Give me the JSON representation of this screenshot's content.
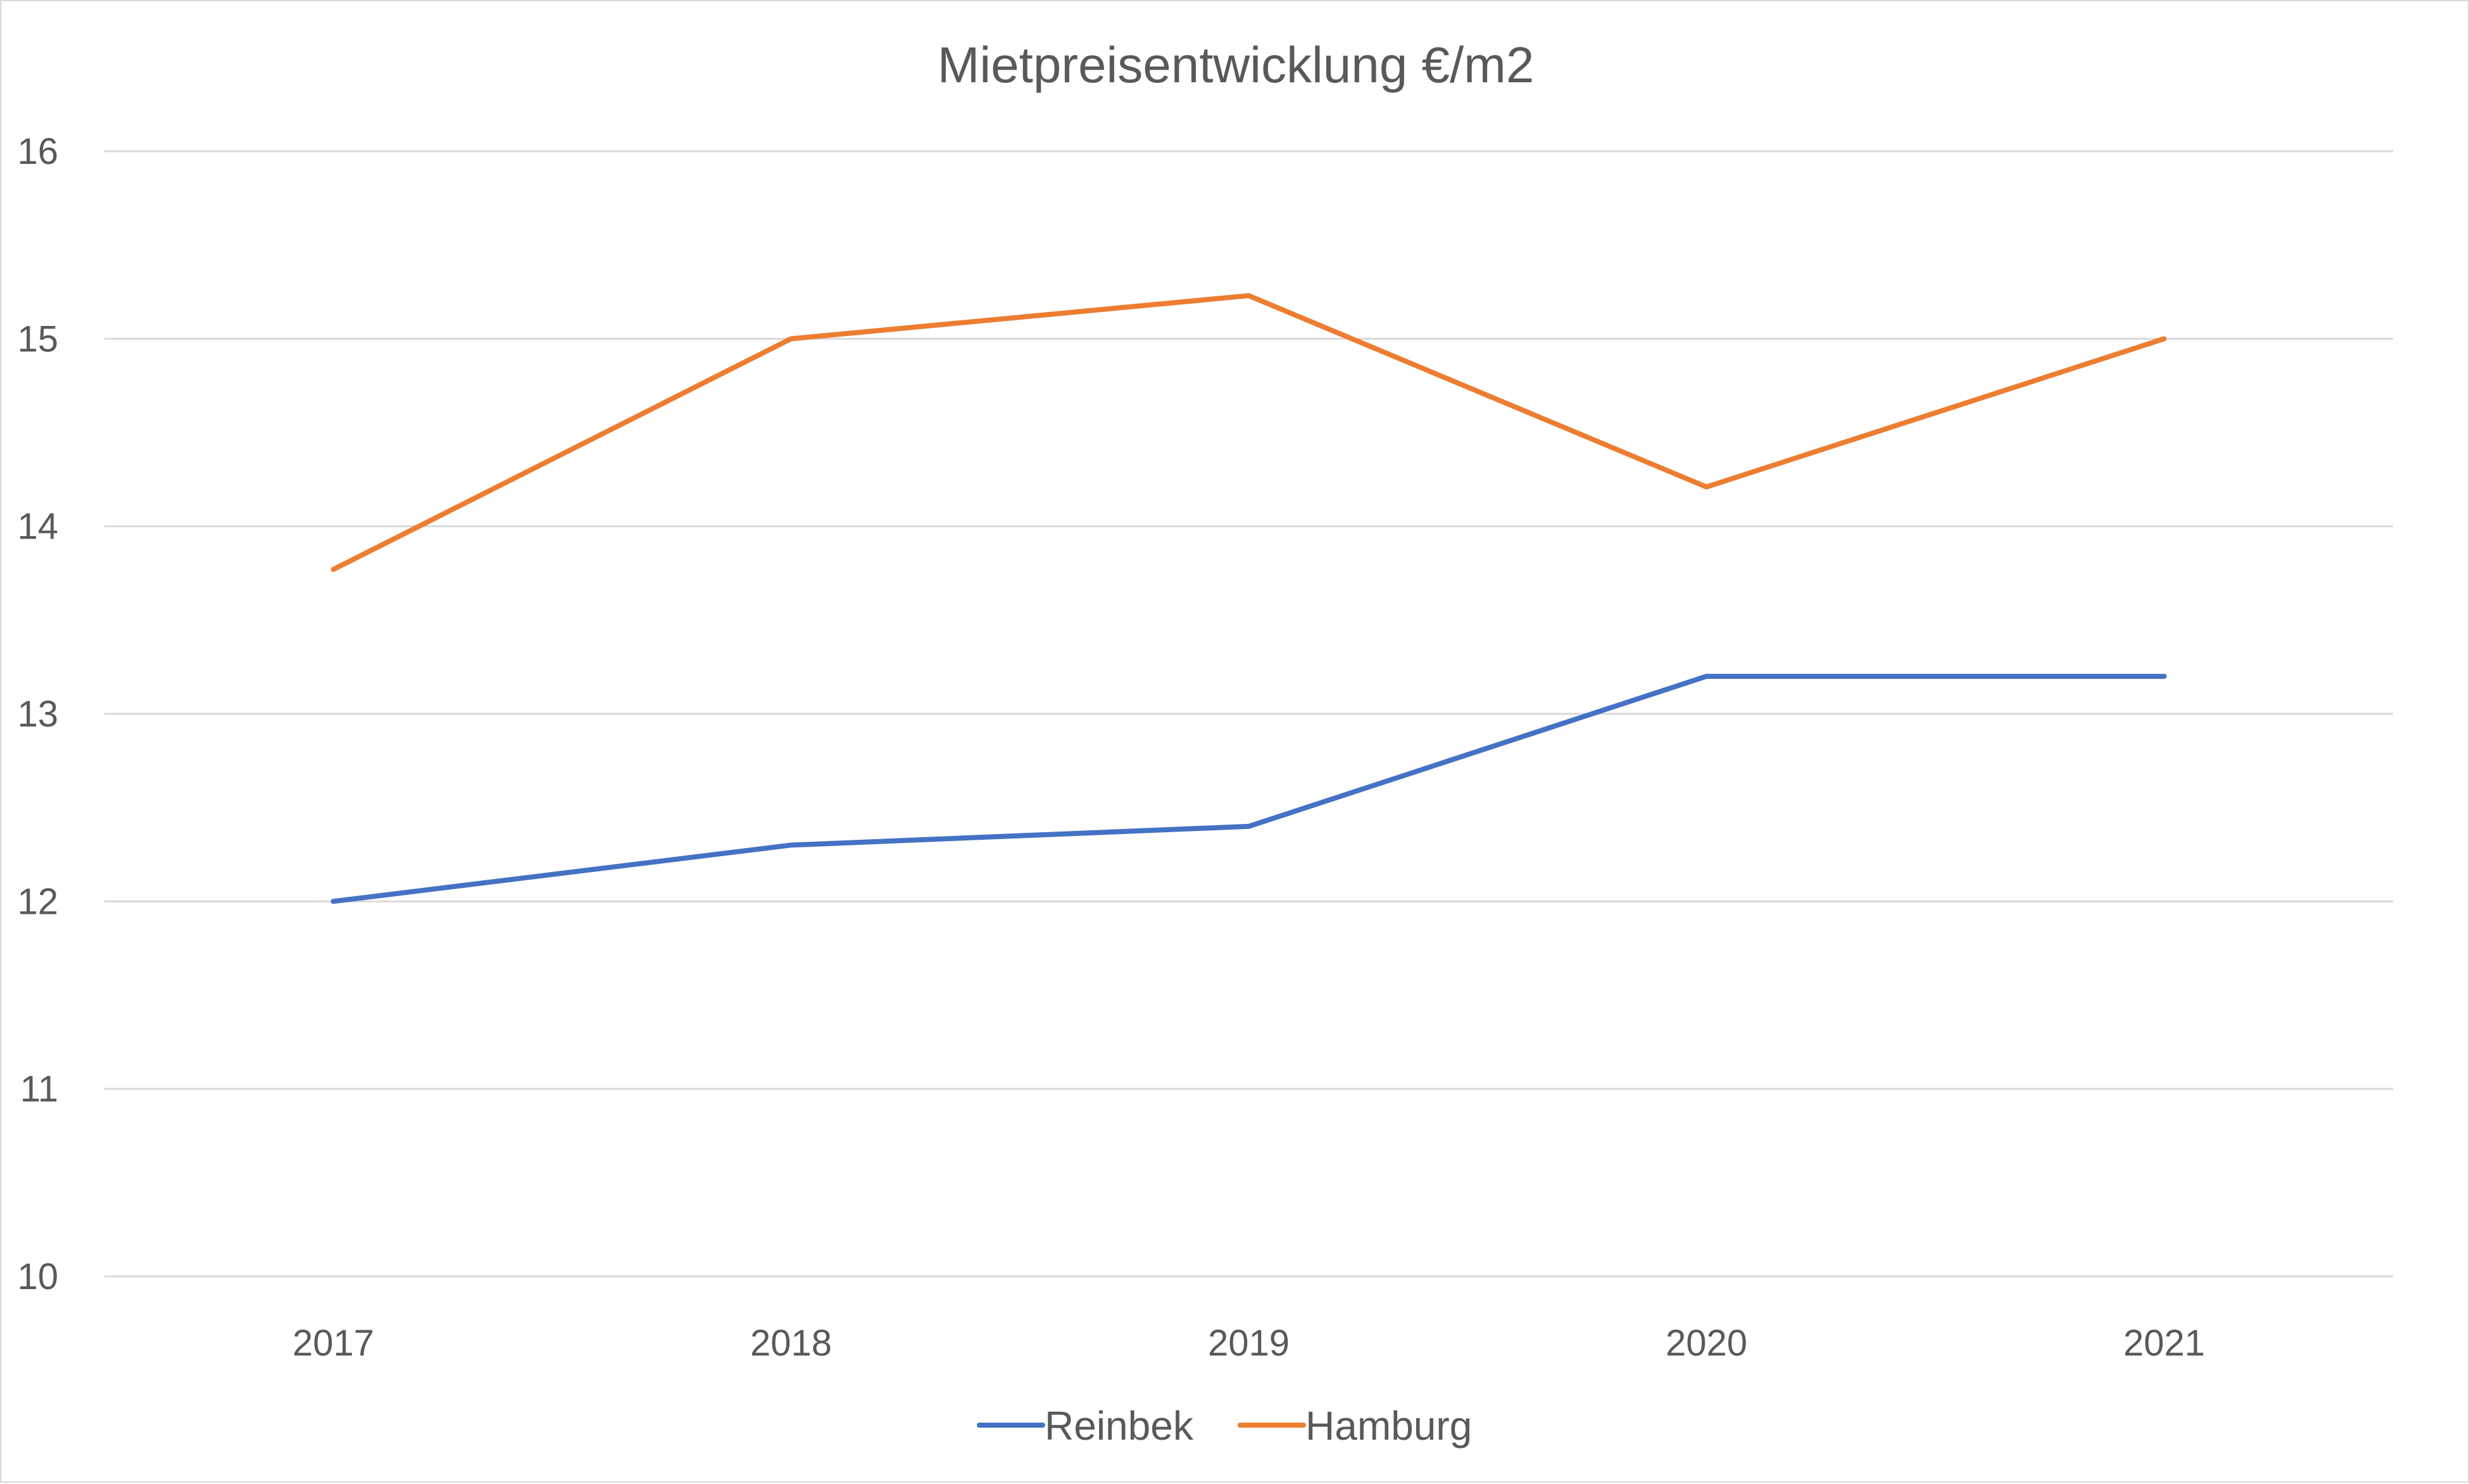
{
  "chart_data": {
    "type": "line",
    "title": "Mietpreisentwicklung  €/m2",
    "xlabel": "",
    "ylabel": "",
    "categories": [
      "2017",
      "2018",
      "2019",
      "2020",
      "2021"
    ],
    "ylim": [
      10,
      16
    ],
    "yticks": [
      "10",
      "11",
      "12",
      "13",
      "14",
      "15",
      "16"
    ],
    "grid": true,
    "legend_position": "bottom",
    "series": [
      {
        "name": "Reinbek",
        "color": "#4472C4",
        "values": [
          12.0,
          12.3,
          12.4,
          13.2,
          13.2
        ]
      },
      {
        "name": "Hamburg",
        "color": "#ED7D31",
        "values": [
          13.77,
          15.0,
          15.23,
          14.21,
          15.0
        ]
      }
    ]
  }
}
